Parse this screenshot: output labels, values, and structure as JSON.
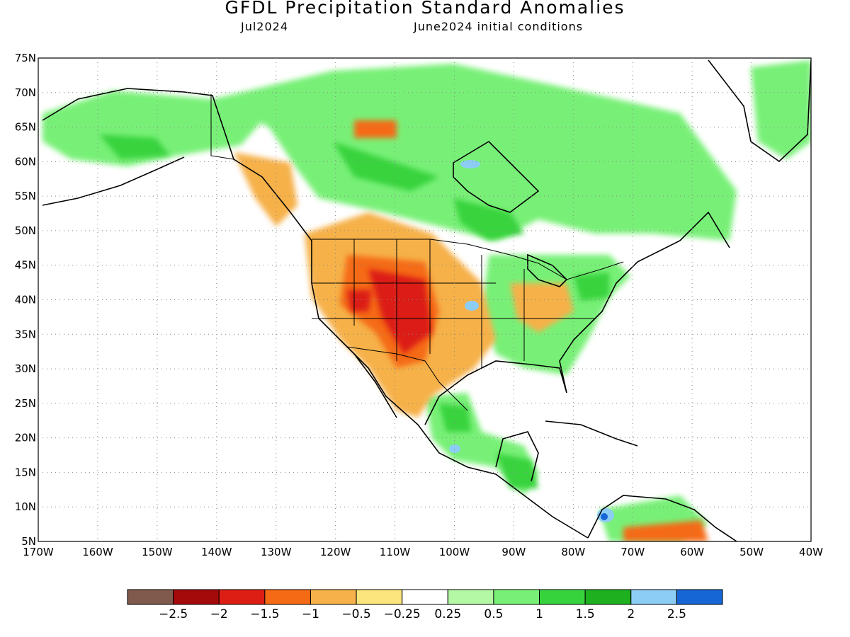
{
  "header": {
    "title": "GFDL Precipitation Standard Anomalies",
    "valid_month": "Jul2024",
    "initial_conditions": "June2024 initial conditions"
  },
  "map": {
    "region": "North America",
    "lon_range": [
      -170,
      -40
    ],
    "lat_range": [
      5,
      75
    ],
    "lat_ticks": [
      "75N",
      "70N",
      "65N",
      "60N",
      "55N",
      "50N",
      "45N",
      "40N",
      "35N",
      "30N",
      "25N",
      "20N",
      "15N",
      "10N",
      "5N"
    ],
    "lon_ticks": [
      "170W",
      "160W",
      "150W",
      "140W",
      "130W",
      "120W",
      "110W",
      "100W",
      "90W",
      "80W",
      "70W",
      "60W",
      "50W",
      "40W"
    ],
    "grid": "dotted"
  },
  "colorbar": {
    "colors": [
      "#7f5a4d",
      "#a50a0a",
      "#dc1e14",
      "#f56a14",
      "#f6b14a",
      "#fbe57c",
      "#ffffff",
      "#b4f7a4",
      "#78f077",
      "#37d33c",
      "#1fb01f",
      "#8ccdf6",
      "#1666d6"
    ],
    "labels": [
      "−2.5",
      "−2",
      "−1.5",
      "−1",
      "−0.5",
      "−0.25",
      "0.25",
      "0.5",
      "1",
      "1.5",
      "2",
      "2.5"
    ]
  }
}
